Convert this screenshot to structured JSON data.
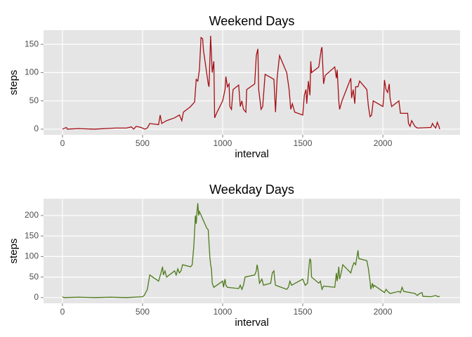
{
  "chart_data": [
    {
      "type": "line",
      "title": "Weekend Days",
      "x_label": "interval",
      "y_label": "steps",
      "color": "#a50f15",
      "grid": true,
      "xlim": [
        -118,
        2482
      ],
      "ylim": [
        -10,
        175
      ],
      "xticks": [
        0,
        500,
        1000,
        1500,
        2000
      ],
      "yticks": [
        0,
        50,
        100,
        150
      ],
      "x": [
        0,
        25,
        30,
        100,
        200,
        330,
        400,
        430,
        445,
        460,
        490,
        515,
        530,
        545,
        600,
        610,
        620,
        650,
        700,
        730,
        745,
        755,
        800,
        825,
        835,
        845,
        855,
        865,
        875,
        880,
        910,
        915,
        925,
        935,
        945,
        950,
        965,
        1000,
        1015,
        1020,
        1030,
        1040,
        1045,
        1055,
        1065,
        1100,
        1110,
        1120,
        1130,
        1145,
        1150,
        1200,
        1210,
        1220,
        1225,
        1240,
        1250,
        1265,
        1320,
        1330,
        1340,
        1355,
        1400,
        1415,
        1425,
        1435,
        1450,
        1500,
        1510,
        1520,
        1525,
        1535,
        1545,
        1550,
        1555,
        1600,
        1615,
        1620,
        1630,
        1640,
        1700,
        1710,
        1715,
        1725,
        1730,
        1745,
        1800,
        1805,
        1815,
        1825,
        1830,
        1845,
        1855,
        1900,
        1910,
        1920,
        1930,
        1940,
        2000,
        2005,
        2010,
        2020,
        2030,
        2040,
        2045,
        2055,
        2100,
        2110,
        2155,
        2160,
        2170,
        2180,
        2200,
        2215,
        2300,
        2310,
        2320,
        2330,
        2340,
        2350,
        2355
      ],
      "values": [
        0,
        3,
        0,
        1,
        0,
        2,
        2,
        4,
        0,
        5,
        3,
        0,
        2,
        10,
        8,
        25,
        10,
        15,
        20,
        25,
        15,
        30,
        40,
        48,
        88,
        85,
        105,
        162,
        160,
        140,
        80,
        75,
        165,
        100,
        120,
        20,
        30,
        50,
        70,
        93,
        75,
        80,
        40,
        35,
        70,
        78,
        40,
        50,
        35,
        30,
        70,
        80,
        130,
        142,
        70,
        35,
        40,
        97,
        88,
        30,
        90,
        130,
        100,
        70,
        35,
        45,
        30,
        25,
        60,
        70,
        45,
        85,
        60,
        120,
        100,
        110,
        140,
        145,
        80,
        95,
        110,
        90,
        105,
        50,
        35,
        50,
        90,
        55,
        70,
        45,
        75,
        75,
        85,
        70,
        40,
        22,
        25,
        50,
        40,
        55,
        87,
        70,
        65,
        80,
        55,
        40,
        50,
        28,
        28,
        10,
        5,
        15,
        5,
        2,
        3,
        10,
        5,
        2,
        12,
        5,
        0
      ]
    },
    {
      "type": "line",
      "title": "Weekday Days",
      "x_label": "interval",
      "y_label": "steps",
      "color": "#4d7a1a",
      "grid": true,
      "xlim": [
        -118,
        2482
      ],
      "ylim": [
        -14,
        241
      ],
      "xticks": [
        0,
        500,
        1000,
        1500,
        2000
      ],
      "yticks": [
        0,
        50,
        100,
        150,
        200
      ],
      "x": [
        0,
        10,
        100,
        200,
        300,
        400,
        500,
        510,
        530,
        545,
        600,
        615,
        625,
        630,
        640,
        650,
        700,
        710,
        720,
        730,
        740,
        750,
        800,
        810,
        820,
        830,
        835,
        840,
        845,
        850,
        855,
        900,
        910,
        920,
        925,
        930,
        935,
        945,
        1000,
        1005,
        1015,
        1020,
        1030,
        1100,
        1110,
        1120,
        1130,
        1140,
        1200,
        1210,
        1215,
        1220,
        1230,
        1245,
        1255,
        1300,
        1310,
        1320,
        1325,
        1330,
        1400,
        1410,
        1420,
        1430,
        1500,
        1515,
        1530,
        1540,
        1545,
        1550,
        1555,
        1600,
        1610,
        1620,
        1630,
        1700,
        1710,
        1715,
        1720,
        1725,
        1730,
        1740,
        1750,
        1800,
        1810,
        1820,
        1830,
        1845,
        1850,
        1900,
        1910,
        1920,
        1925,
        1935,
        1940,
        1945,
        2000,
        2010,
        2020,
        2030,
        2045,
        2100,
        2110,
        2120,
        2130,
        2200,
        2215,
        2230,
        2245,
        2250,
        2300,
        2330,
        2345,
        2355
      ],
      "values": [
        2,
        0,
        1,
        0,
        1,
        0,
        2,
        5,
        20,
        55,
        40,
        60,
        75,
        55,
        65,
        50,
        65,
        55,
        70,
        60,
        65,
        80,
        75,
        80,
        125,
        200,
        180,
        210,
        230,
        200,
        210,
        170,
        165,
        100,
        80,
        70,
        35,
        25,
        40,
        25,
        45,
        30,
        25,
        22,
        30,
        20,
        30,
        50,
        55,
        65,
        80,
        70,
        35,
        45,
        30,
        35,
        60,
        65,
        45,
        30,
        20,
        25,
        40,
        30,
        45,
        30,
        35,
        80,
        95,
        90,
        50,
        35,
        40,
        20,
        28,
        25,
        60,
        40,
        55,
        75,
        45,
        60,
        80,
        60,
        75,
        85,
        80,
        115,
        95,
        90,
        70,
        40,
        20,
        35,
        25,
        30,
        15,
        12,
        20,
        15,
        10,
        15,
        12,
        25,
        15,
        10,
        5,
        10,
        12,
        3,
        2,
        5,
        2,
        3
      ]
    }
  ]
}
